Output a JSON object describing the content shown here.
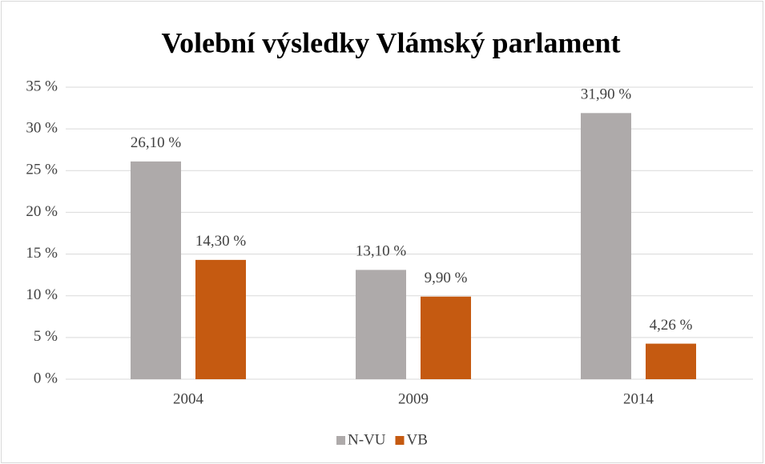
{
  "chart_data": {
    "type": "bar",
    "title": "Volební výsledky Vlámský parlament",
    "categories": [
      "2004",
      "2009",
      "2014"
    ],
    "series": [
      {
        "name": "N-VU",
        "color": "#aeaaaa",
        "values": [
          26.1,
          13.1,
          31.9
        ],
        "value_labels": [
          "26,10 %",
          "13,10 %",
          "31,90 %"
        ]
      },
      {
        "name": "VB",
        "color": "#c55a11",
        "values": [
          14.3,
          9.9,
          4.26
        ],
        "value_labels": [
          "14,30 %",
          "9,90 %",
          "4,26 %"
        ]
      }
    ],
    "ylim": [
      0,
      35
    ],
    "yticks": [
      {
        "value": 0,
        "label": "0 %"
      },
      {
        "value": 5,
        "label": "5 %"
      },
      {
        "value": 10,
        "label": "10 %"
      },
      {
        "value": 15,
        "label": "15 %"
      },
      {
        "value": 20,
        "label": "20 %"
      },
      {
        "value": 25,
        "label": "25 %"
      },
      {
        "value": 30,
        "label": "30 %"
      },
      {
        "value": 35,
        "label": "35 %"
      }
    ],
    "grid": true,
    "legend": "bottom"
  }
}
